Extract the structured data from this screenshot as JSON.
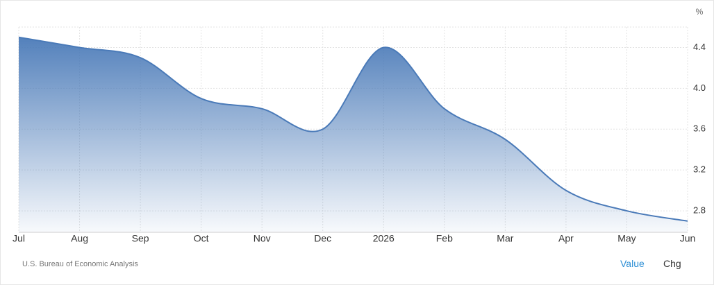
{
  "chart_data": {
    "type": "area",
    "unit": "%",
    "source": "U.S. Bureau of Economic Analysis",
    "buttons": [
      "Value",
      "Chg"
    ],
    "categories": [
      "Jul",
      "Aug",
      "Sep",
      "Oct",
      "Nov",
      "Dec",
      "2026",
      "Feb",
      "Mar",
      "Apr",
      "May",
      "Jun"
    ],
    "values": [
      4.5,
      4.4,
      4.3,
      3.9,
      3.8,
      3.6,
      4.4,
      3.8,
      3.5,
      3.0,
      2.8,
      2.7
    ],
    "color": "#4a7ab8",
    "ylim": [
      2.59,
      4.6
    ],
    "yticks": [
      {
        "value": 2.8,
        "label": "2.8"
      },
      {
        "value": 3.2,
        "label": "3.2"
      },
      {
        "value": 3.6,
        "label": "3.6"
      },
      {
        "value": 4.0,
        "label": "4.0"
      },
      {
        "value": 4.4,
        "label": "4.4"
      }
    ],
    "grid": true
  }
}
